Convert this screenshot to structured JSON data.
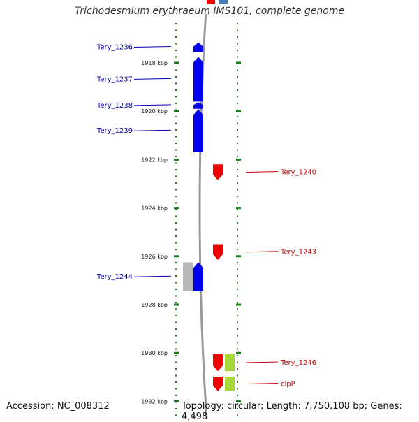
{
  "title": "Trichodesmium erythraeum IMS101, complete genome",
  "footer": {
    "accession": "Accession: NC_008312",
    "summary": "Topology: circular; Length: 7,750,108 bp; Genes: 4,498"
  },
  "colors": {
    "forward_strand": "#0000ee",
    "reverse_strand": "#ee0000",
    "label_forward": "#0000aa",
    "label_reverse": "#cc0000",
    "rna": "#b8b8b8",
    "other_feature": "#a6d83a",
    "backbone": "#9a9a9a",
    "ticks": "#1e7a1e"
  },
  "kbp_ticks": [
    {
      "kbp": 1918,
      "label": "1918 kbp"
    },
    {
      "kbp": 1920,
      "label": "1920 kbp"
    },
    {
      "kbp": 1922,
      "label": "1922 kbp"
    },
    {
      "kbp": 1924,
      "label": "1924 kbp"
    },
    {
      "kbp": 1926,
      "label": "1926 kbp"
    },
    {
      "kbp": 1928,
      "label": "1928 kbp"
    },
    {
      "kbp": 1930,
      "label": "1930 kbp"
    },
    {
      "kbp": 1932,
      "label": "1932 kbp"
    }
  ],
  "genes": [
    {
      "name": "Tery_1236",
      "strand": "forward",
      "start_kbp": 1917.15,
      "end_kbp": 1917.55
    },
    {
      "name": "Tery_1237",
      "strand": "forward",
      "start_kbp": 1917.75,
      "end_kbp": 1919.6
    },
    {
      "name": "Tery_1238",
      "strand": "forward",
      "start_kbp": 1919.62,
      "end_kbp": 1919.9
    },
    {
      "name": "Tery_1239",
      "strand": "forward",
      "start_kbp": 1919.92,
      "end_kbp": 1921.7
    },
    {
      "name": "Tery_1240",
      "strand": "reverse",
      "start_kbp": 1922.2,
      "end_kbp": 1922.85
    },
    {
      "name": "Tery_1243",
      "strand": "reverse",
      "start_kbp": 1925.5,
      "end_kbp": 1926.15
    },
    {
      "name": "Tery_1244",
      "strand": "forward",
      "start_kbp": 1926.25,
      "end_kbp": 1927.45
    },
    {
      "name": "Tery_1246",
      "strand": "reverse",
      "start_kbp": 1930.05,
      "end_kbp": 1930.75
    },
    {
      "name": "clpP",
      "strand": "reverse",
      "start_kbp": 1930.98,
      "end_kbp": 1931.58
    }
  ],
  "rna_features": [
    {
      "strand": "forward",
      "start_kbp": 1926.25,
      "end_kbp": 1927.45
    }
  ],
  "other_features": [
    {
      "strand": "reverse",
      "start_kbp": 1930.05,
      "end_kbp": 1930.75
    },
    {
      "strand": "reverse",
      "start_kbp": 1930.98,
      "end_kbp": 1931.58
    }
  ]
}
